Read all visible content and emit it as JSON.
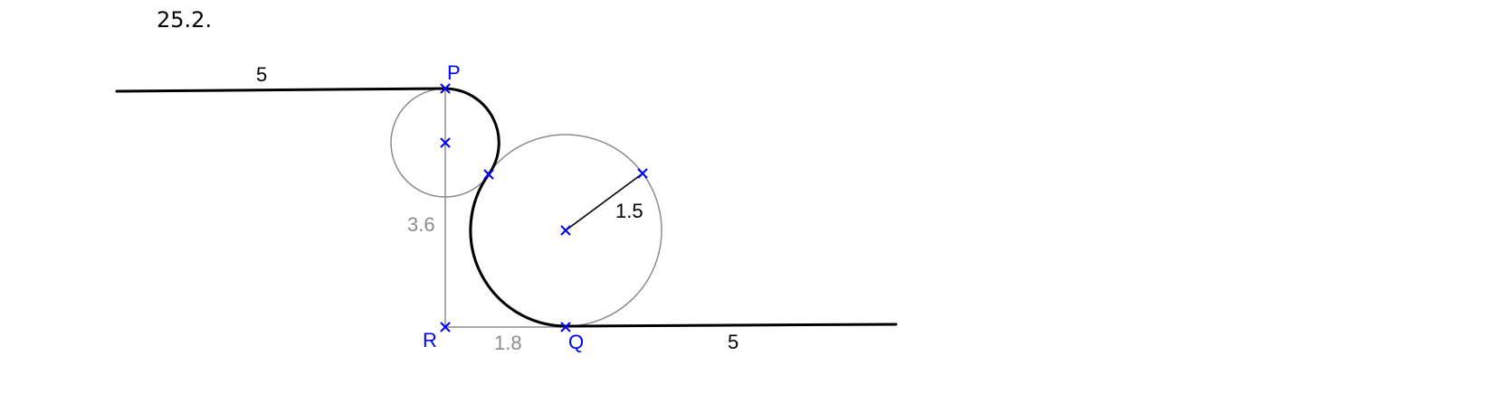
{
  "problem_number": "25.2.",
  "points": {
    "P": "P",
    "Q": "Q",
    "R": "R"
  },
  "dimensions": {
    "top_line_length": "5",
    "bottom_line_length": "5",
    "vertical_PR": "3.6",
    "horizontal_RQ": "1.8",
    "large_radius": "1.5"
  },
  "colors": {
    "construction": "#8c8c8c",
    "outline": "#000000",
    "points": "#0000ff"
  }
}
